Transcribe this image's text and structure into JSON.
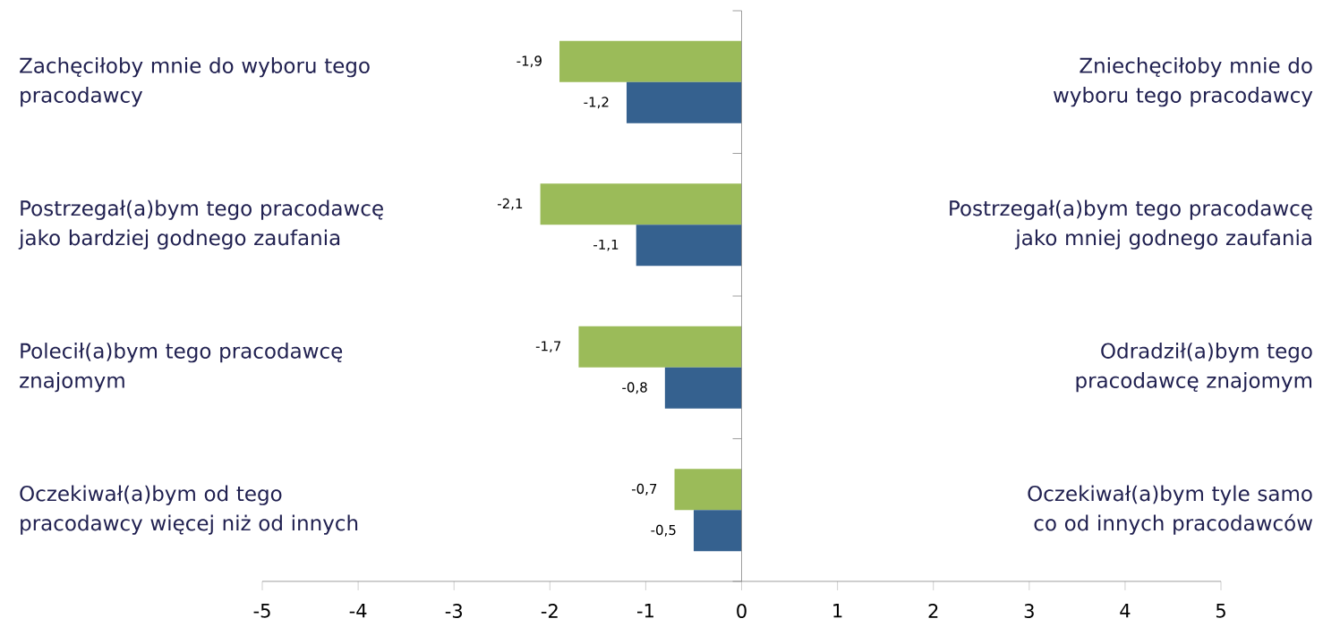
{
  "chart_data": {
    "type": "bar",
    "orientation": "horizontal",
    "categories": [
      "Zachęciłoby mnie do wyboru tego pracodawcy",
      "Postrzegał(a)bym tego pracodawcę jako bardziej godnego zaufania",
      "Polecił(a)bym tego pracodawcę znajomym",
      "Oczekiwał(a)bym od tego pracodawcy więcej niż od innych"
    ],
    "y2_categories": [
      "Zniechęciłoby mnie do wyboru tego pracodawcy",
      "Postrzegał(a)bym tego pracodawcę jako mniej godnego zaufania",
      "Odradził(a)bym tego pracodawcę znajomym",
      "Oczekiwał(a)bym tyle samo co od innych pracodawców"
    ],
    "series": [
      {
        "color": "#9bbb59",
        "values": [
          -1.9,
          -2.1,
          -1.7,
          -0.7
        ],
        "value_labels": [
          "-1,9",
          "-2,1",
          "-1,7",
          "-0,7"
        ]
      },
      {
        "color": "#35618f",
        "values": [
          -1.2,
          -1.1,
          -0.8,
          -0.5
        ],
        "value_labels": [
          "-1,2",
          "-1,1",
          "-0,8",
          "-0,5"
        ]
      }
    ],
    "xlim": [
      -5,
      5
    ],
    "xticks": [
      -5,
      -4,
      -3,
      -2,
      -1,
      0,
      1,
      2,
      3,
      4,
      5
    ]
  }
}
